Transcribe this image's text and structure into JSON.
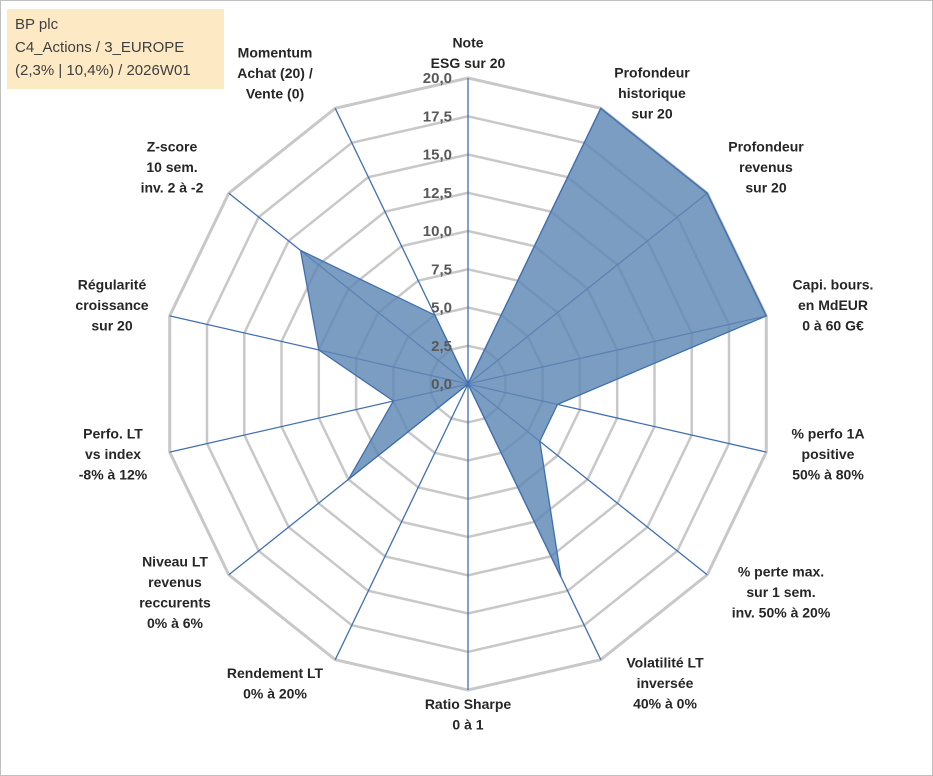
{
  "info": {
    "line1": "BP plc",
    "line2": "C4_Actions / 3_EUROPE",
    "line3": "(2,3% | 10,4%) / 2026W01"
  },
  "colors": {
    "fill": "#5f87b5",
    "stroke": "#3f6fb0",
    "grid": "#c8c8c8",
    "spoke": "#3f6fb0",
    "info_bg": "#fde9c4"
  },
  "chart_data": {
    "type": "radar",
    "range": [
      0,
      20
    ],
    "step": 2.5,
    "tick_labels": [
      "0,0",
      "2,5",
      "5,0",
      "7,5",
      "10,0",
      "12,5",
      "15,0",
      "17,5",
      "20,0"
    ],
    "axes": [
      {
        "lines": [
          "Note",
          "ESG sur 20"
        ],
        "value": 0
      },
      {
        "lines": [
          "Profondeur",
          "historique",
          "sur 20"
        ],
        "value": 20
      },
      {
        "lines": [
          "Profondeur",
          "revenus",
          "sur 20"
        ],
        "value": 20
      },
      {
        "lines": [
          "Capi. bours.",
          "en MdEUR",
          "0 à 60 G€"
        ],
        "value": 20
      },
      {
        "lines": [
          "% perfo 1A",
          "positive",
          "50% à 80%"
        ],
        "value": 6
      },
      {
        "lines": [
          "% perte max.",
          "sur 1 sem.",
          "inv. 50% à 20%"
        ],
        "value": 6
      },
      {
        "lines": [
          "Volatilité LT",
          "inversée",
          "40% à 0%"
        ],
        "value": 14
      },
      {
        "lines": [
          "Ratio Sharpe",
          "0 à 1"
        ],
        "value": 0
      },
      {
        "lines": [
          "Rendement LT",
          "0% à 20%"
        ],
        "value": 0
      },
      {
        "lines": [
          "Niveau LT",
          "revenus",
          "reccurents",
          "0% à 6%"
        ],
        "value": 10
      },
      {
        "lines": [
          "Perfo. LT",
          "vs index",
          "-8% à 12%"
        ],
        "value": 5
      },
      {
        "lines": [
          "Régularité",
          "croissance",
          "sur 20"
        ],
        "value": 10
      },
      {
        "lines": [
          "Z-score",
          "10 sem.",
          "inv. 2 à -2"
        ],
        "value": 14
      },
      {
        "lines": [
          "Momentum",
          "Achat (20) /",
          "Vente (0)"
        ],
        "value": 5
      }
    ]
  }
}
